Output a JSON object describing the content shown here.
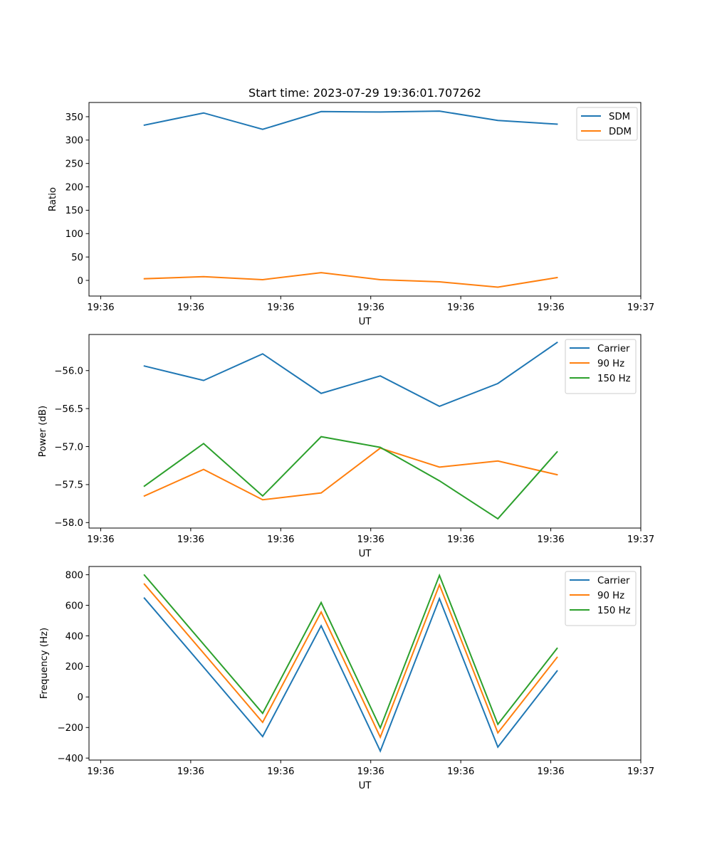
{
  "chart_data": [
    {
      "type": "line",
      "title": "Start time: 2023-07-29 19:36:01.707262",
      "xlabel": "UT",
      "ylabel": "Ratio",
      "x_units": "seconds after 19:36:00",
      "x": [
        4.85,
        11.43,
        17.99,
        24.49,
        31.06,
        37.63,
        44.12,
        50.7
      ],
      "xlim": [
        -1.3,
        60.0
      ],
      "xticks": [
        0,
        10,
        20,
        30,
        40,
        50,
        60
      ],
      "xtick_labels": [
        "19:36",
        "19:36",
        "19:36",
        "19:36",
        "19:36",
        "19:36",
        "19:37"
      ],
      "ylim": [
        -33.5,
        380.4
      ],
      "yticks": [
        0,
        50,
        100,
        150,
        200,
        250,
        300,
        350
      ],
      "ytick_labels": [
        "0",
        "50",
        "100",
        "150",
        "200",
        "250",
        "300",
        "350"
      ],
      "grid": false,
      "legend": "top-right",
      "series": [
        {
          "name": "SDM",
          "color": "#1f77b4",
          "values": [
            332,
            358,
            323,
            361,
            360,
            362,
            342,
            334
          ]
        },
        {
          "name": "DDM",
          "color": "#ff7f0e",
          "values": [
            3.5,
            8,
            1.5,
            16.5,
            1.5,
            -3,
            -14.5,
            6
          ]
        }
      ]
    },
    {
      "type": "line",
      "title": "",
      "xlabel": "UT",
      "ylabel": "Power (dB)",
      "x_units": "seconds after 19:36:00",
      "x": [
        4.85,
        11.43,
        17.99,
        24.49,
        31.06,
        37.63,
        44.12,
        50.7
      ],
      "xlim": [
        -1.3,
        60.0
      ],
      "xticks": [
        0,
        10,
        20,
        30,
        40,
        50,
        60
      ],
      "xtick_labels": [
        "19:36",
        "19:36",
        "19:36",
        "19:36",
        "19:36",
        "19:36",
        "19:37"
      ],
      "ylim": [
        -58.072,
        -55.525
      ],
      "yticks": [
        -58.0,
        -57.5,
        -57.0,
        -56.5,
        -56.0
      ],
      "ytick_labels": [
        "−58.0",
        "−57.5",
        "−57.0",
        "−56.5",
        "−56.0"
      ],
      "grid": false,
      "legend": "top-right",
      "series": [
        {
          "name": "Carrier",
          "color": "#1f77b4",
          "values": [
            -55.94,
            -56.13,
            -55.78,
            -56.3,
            -56.07,
            -56.47,
            -56.17,
            -55.63
          ]
        },
        {
          "name": "90 Hz",
          "color": "#ff7f0e",
          "values": [
            -57.65,
            -57.3,
            -57.7,
            -57.61,
            -57.02,
            -57.27,
            -57.19,
            -57.37
          ]
        },
        {
          "name": "150 Hz",
          "color": "#2ca02c",
          "values": [
            -57.52,
            -56.96,
            -57.65,
            -56.87,
            -57.01,
            -57.45,
            -57.95,
            -57.07
          ]
        }
      ]
    },
    {
      "type": "line",
      "title": "",
      "xlabel": "UT",
      "ylabel": "Frequency (Hz)",
      "x_units": "seconds after 19:36:00",
      "x": [
        4.85,
        11.43,
        17.99,
        24.49,
        31.06,
        37.63,
        44.12,
        50.7
      ],
      "xlim": [
        -1.3,
        60.0
      ],
      "xticks": [
        0,
        10,
        20,
        30,
        40,
        50,
        60
      ],
      "xtick_labels": [
        "19:36",
        "19:36",
        "19:36",
        "19:36",
        "19:36",
        "19:36",
        "19:37"
      ],
      "ylim": [
        -413,
        854
      ],
      "yticks": [
        -400,
        -200,
        0,
        200,
        400,
        600,
        800
      ],
      "ytick_labels": [
        "−400",
        "−200",
        "0",
        "200",
        "400",
        "600",
        "800"
      ],
      "grid": false,
      "legend": "top-right",
      "series": [
        {
          "name": "Carrier",
          "color": "#1f77b4",
          "values": [
            647,
            195,
            -259,
            466,
            -354,
            644,
            -328,
            170
          ]
        },
        {
          "name": "90 Hz",
          "color": "#ff7f0e",
          "values": [
            739,
            287,
            -166,
            556,
            -263,
            734,
            -235,
            259
          ]
        },
        {
          "name": "150 Hz",
          "color": "#2ca02c",
          "values": [
            798,
            345,
            -107,
            618,
            -202,
            796,
            -179,
            318
          ]
        }
      ]
    }
  ]
}
